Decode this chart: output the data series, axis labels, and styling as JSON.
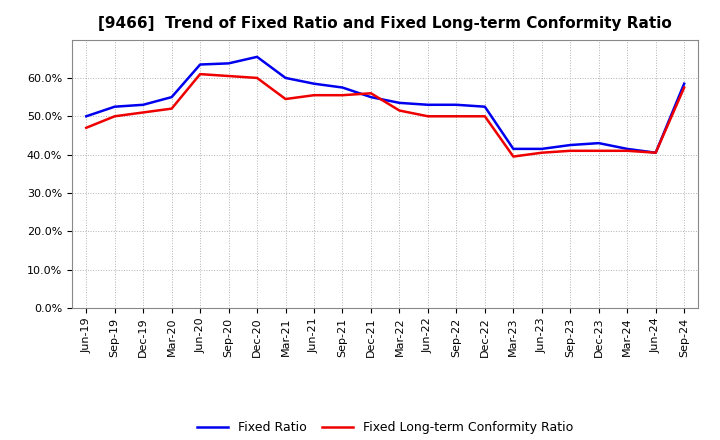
{
  "title": "[9466]  Trend of Fixed Ratio and Fixed Long-term Conformity Ratio",
  "x_labels": [
    "Jun-19",
    "Sep-19",
    "Dec-19",
    "Mar-20",
    "Jun-20",
    "Sep-20",
    "Dec-20",
    "Mar-21",
    "Jun-21",
    "Sep-21",
    "Dec-21",
    "Mar-22",
    "Jun-22",
    "Sep-22",
    "Dec-22",
    "Mar-23",
    "Jun-23",
    "Sep-23",
    "Dec-23",
    "Mar-24",
    "Jun-24",
    "Sep-24"
  ],
  "fixed_ratio": [
    50.0,
    52.5,
    53.0,
    55.0,
    63.5,
    63.8,
    65.5,
    60.0,
    58.5,
    57.5,
    55.0,
    53.5,
    53.0,
    53.0,
    52.5,
    41.5,
    41.5,
    42.5,
    43.0,
    41.5,
    40.5,
    58.5
  ],
  "fixed_lt_ratio": [
    47.0,
    50.0,
    51.0,
    52.0,
    61.0,
    60.5,
    60.0,
    54.5,
    55.5,
    55.5,
    56.0,
    51.5,
    50.0,
    50.0,
    50.0,
    39.5,
    40.5,
    41.0,
    41.0,
    41.0,
    40.5,
    57.5
  ],
  "fixed_ratio_color": "#0000ee",
  "fixed_lt_ratio_color": "#ee0000",
  "ylim": [
    0,
    70
  ],
  "yticks": [
    0,
    10,
    20,
    30,
    40,
    50,
    60
  ],
  "background_color": "#ffffff",
  "grid_color": "#aaaaaa",
  "line_width": 1.8,
  "legend_labels": [
    "Fixed Ratio",
    "Fixed Long-term Conformity Ratio"
  ],
  "title_fontsize": 11,
  "tick_fontsize": 8,
  "legend_fontsize": 9
}
